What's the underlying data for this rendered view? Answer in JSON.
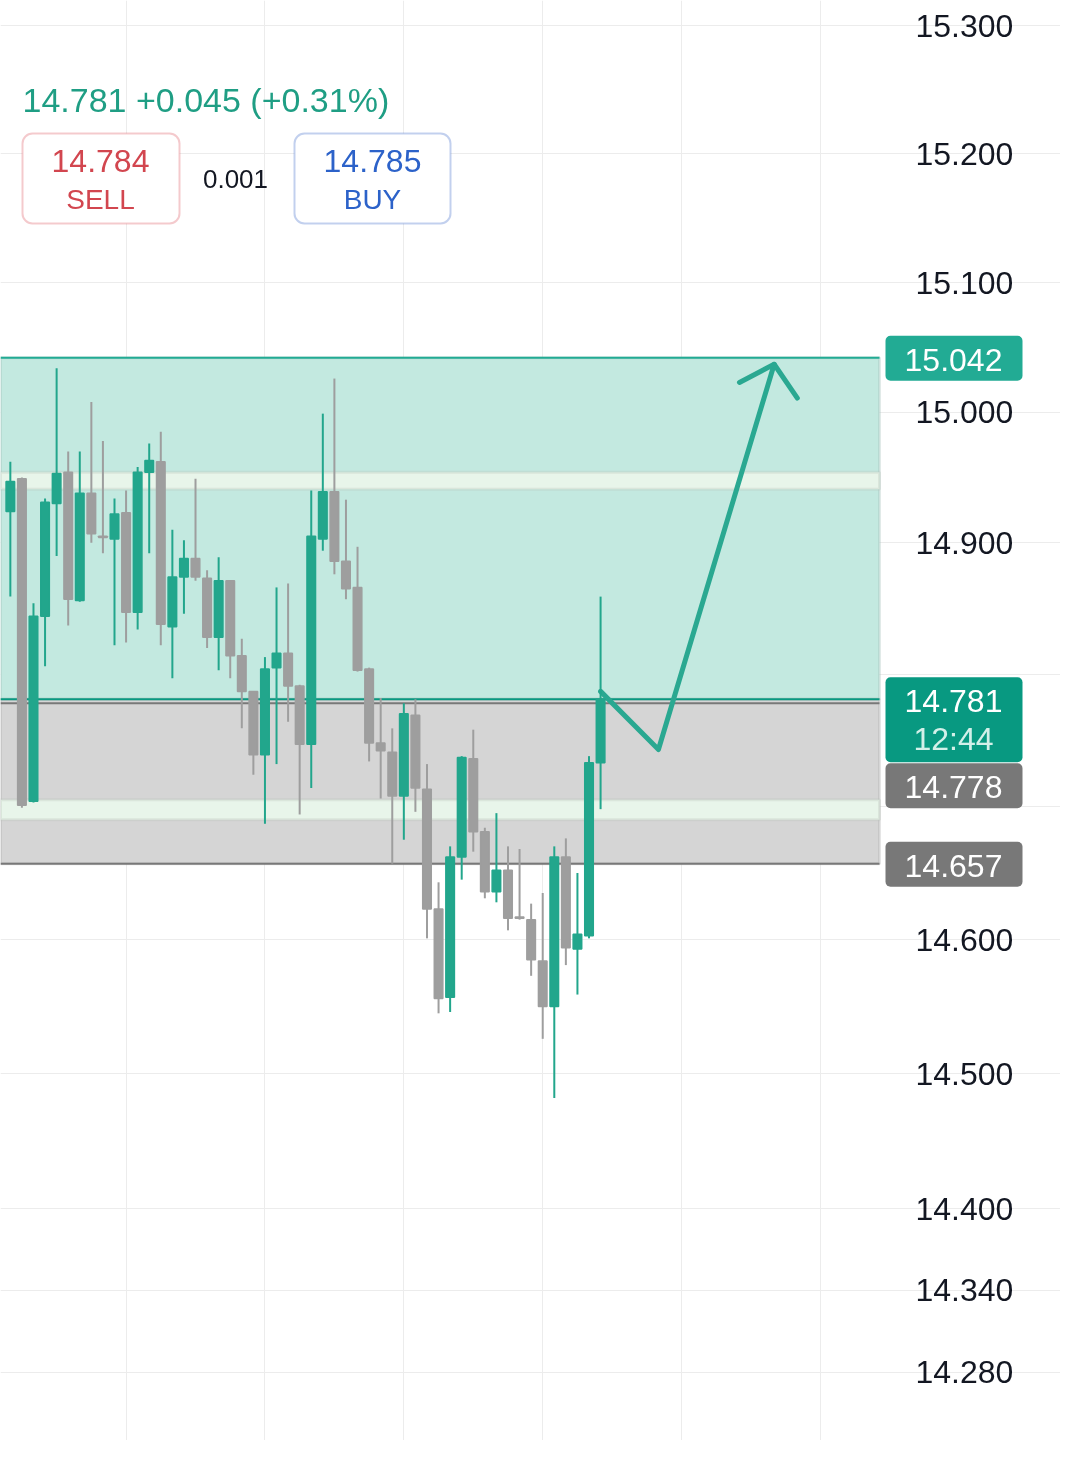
{
  "chart_data": {
    "type": "candlestick",
    "categories": [
      null,
      null,
      null,
      null,
      null,
      null,
      null,
      null,
      null,
      null,
      null,
      null,
      null,
      null,
      null,
      null,
      null,
      null,
      null,
      null,
      null,
      null,
      null,
      null,
      null,
      null,
      null,
      null,
      null,
      null,
      null,
      null,
      null,
      null,
      null,
      null,
      null,
      null,
      null,
      null,
      null,
      null,
      null,
      null,
      null,
      null,
      null,
      null,
      null,
      null,
      null,
      null,
      null,
      null,
      null,
      null,
      null,
      null,
      null,
      null,
      null,
      null,
      null,
      null,
      null,
      null,
      null,
      null,
      null,
      null,
      null,
      null,
      null,
      null,
      null,
      null
    ],
    "ohlc": [
      [
        14.924,
        14.962,
        14.859,
        14.947
      ],
      [
        14.949,
        14.95,
        14.699,
        14.701
      ],
      [
        14.704,
        14.854,
        14.703,
        14.844
      ],
      [
        14.844,
        14.934,
        14.806,
        14.931
      ],
      [
        14.93,
        15.034,
        14.89,
        14.953
      ],
      [
        14.954,
        14.97,
        14.837,
        14.857
      ],
      [
        14.856,
        14.97,
        14.855,
        14.938
      ],
      [
        14.938,
        15.008,
        14.9,
        14.907
      ],
      [
        14.905,
        14.978,
        14.892,
        14.904
      ],
      [
        14.903,
        14.934,
        14.822,
        14.922
      ],
      [
        14.923,
        14.94,
        14.824,
        14.847
      ],
      [
        14.847,
        14.958,
        14.834,
        14.954
      ],
      [
        14.954,
        14.976,
        14.892,
        14.963
      ],
      [
        14.962,
        14.985,
        14.822,
        14.838
      ],
      [
        14.836,
        14.91,
        14.797,
        14.874
      ],
      [
        14.874,
        14.902,
        14.846,
        14.888
      ],
      [
        14.888,
        14.949,
        14.871,
        14.874
      ],
      [
        14.873,
        14.879,
        14.82,
        14.828
      ],
      [
        14.828,
        14.889,
        14.803,
        14.871
      ],
      [
        14.871,
        14.871,
        14.797,
        14.814
      ],
      [
        14.814,
        14.827,
        14.759,
        14.787
      ],
      [
        14.787,
        14.787,
        14.724,
        14.739
      ],
      [
        14.739,
        14.813,
        14.687,
        14.804
      ],
      [
        14.805,
        14.866,
        14.732,
        14.816
      ],
      [
        14.816,
        14.869,
        14.764,
        14.791
      ],
      [
        14.791,
        14.792,
        14.694,
        14.747
      ],
      [
        14.747,
        14.94,
        14.714,
        14.905
      ],
      [
        14.903,
        14.999,
        14.894,
        14.939
      ],
      [
        14.939,
        15.026,
        14.876,
        14.886
      ],
      [
        14.886,
        14.933,
        14.857,
        14.865
      ],
      [
        14.866,
        14.897,
        14.802,
        14.803
      ],
      [
        14.804,
        14.805,
        14.734,
        14.748
      ],
      [
        14.748,
        14.782,
        14.706,
        14.742
      ],
      [
        14.741,
        14.759,
        14.657,
        14.708
      ],
      [
        14.708,
        14.778,
        14.675,
        14.77
      ],
      [
        14.769,
        14.781,
        14.696,
        14.714
      ],
      [
        14.713,
        14.732,
        14.601,
        14.623
      ],
      [
        14.623,
        14.643,
        14.545,
        14.556
      ],
      [
        14.557,
        14.67,
        14.546,
        14.662
      ],
      [
        14.662,
        14.738,
        14.645,
        14.737
      ],
      [
        14.736,
        14.758,
        14.666,
        14.681
      ],
      [
        14.681,
        14.684,
        14.631,
        14.636
      ],
      [
        14.636,
        14.695,
        14.628,
        14.652
      ],
      [
        14.652,
        14.67,
        14.607,
        14.616
      ],
      [
        14.617,
        14.668,
        14.615,
        14.616
      ],
      [
        14.615,
        14.627,
        14.573,
        14.585
      ],
      [
        14.584,
        14.635,
        14.526,
        14.55
      ],
      [
        14.55,
        14.67,
        14.482,
        14.662
      ],
      [
        14.662,
        14.676,
        14.581,
        14.594
      ],
      [
        14.593,
        14.65,
        14.559,
        14.604
      ],
      [
        14.603,
        14.738,
        14.601,
        14.733
      ],
      [
        14.733,
        14.859,
        14.698,
        14.781
      ],
      null,
      null,
      null,
      null,
      null,
      null,
      null,
      null,
      null,
      null,
      null,
      null,
      null,
      null,
      null,
      null,
      null,
      null,
      null,
      null,
      null,
      null,
      null,
      null
    ],
    "colors": [
      "#22a68c",
      "#9e9e9e",
      "#22a68c",
      "#22a68c",
      "#22a68c",
      "#9e9e9e",
      "#22a68c",
      "#9e9e9e",
      "#9e9e9e",
      "#22a68c",
      "#9e9e9e",
      "#22a68c",
      "#22a68c",
      "#9e9e9e",
      "#22a68c",
      "#22a68c",
      "#9e9e9e",
      "#9e9e9e",
      "#22a68c",
      "#9e9e9e",
      "#9e9e9e",
      "#9e9e9e",
      "#22a68c",
      "#22a68c",
      "#9e9e9e",
      "#9e9e9e",
      "#22a68c",
      "#22a68c",
      "#9e9e9e",
      "#9e9e9e",
      "#9e9e9e",
      "#9e9e9e",
      "#9e9e9e",
      "#9e9e9e",
      "#22a68c",
      "#9e9e9e",
      "#9e9e9e",
      "#9e9e9e",
      "#22a68c",
      "#22a68c",
      "#9e9e9e",
      "#9e9e9e",
      "#22a68c",
      "#9e9e9e",
      "#9e9e9e",
      "#9e9e9e",
      "#9e9e9e",
      "#22a68c",
      "#9e9e9e",
      "#22a68c",
      "#22a68c",
      "#22a68c",
      null,
      null,
      null,
      null,
      null,
      null,
      null,
      null,
      null,
      null,
      null,
      null,
      null,
      null,
      null,
      null,
      null,
      null,
      null,
      null,
      null,
      null,
      null,
      null
    ],
    "series": [
      {
        "type": "line",
        "color": "#2aa891",
        "values": [
          null,
          null,
          null,
          null,
          null,
          null,
          null,
          null,
          null,
          null,
          null,
          null,
          null,
          null,
          null,
          null,
          null,
          null,
          null,
          null,
          null,
          null,
          null,
          null,
          null,
          null,
          null,
          null,
          null,
          null,
          null,
          null,
          null,
          null,
          null,
          null,
          null,
          null,
          null,
          null,
          null,
          null,
          null,
          null,
          null,
          null,
          null,
          null,
          null,
          null,
          null,
          14.787,
          null,
          null,
          null,
          null,
          14.743,
          null,
          null,
          null,
          null,
          null,
          null,
          null,
          null,
          null,
          15.037,
          null,
          null,
          null,
          null,
          null,
          null,
          null,
          null,
          null
        ]
      },
      {
        "type": "line",
        "color": "#2aa891",
        "values": [
          null,
          null,
          null,
          null,
          null,
          null,
          null,
          null,
          null,
          null,
          null,
          null,
          null,
          null,
          null,
          null,
          null,
          null,
          null,
          null,
          null,
          null,
          null,
          null,
          null,
          null,
          null,
          null,
          null,
          null,
          null,
          null,
          null,
          null,
          null,
          null,
          null,
          null,
          null,
          null,
          null,
          null,
          null,
          null,
          null,
          null,
          null,
          null,
          null,
          null,
          null,
          null,
          null,
          null,
          null,
          null,
          null,
          null,
          null,
          null,
          null,
          null,
          null,
          15.023,
          null,
          null,
          15.037,
          null,
          15.011,
          null,
          null,
          null,
          null,
          null,
          null,
          null
        ]
      }
    ],
    "bands": [
      {
        "axis": "y",
        "from": 14.781,
        "to": 15.042,
        "color": "#c3e9e0"
      },
      {
        "axis": "y",
        "from": 14.657,
        "to": 14.781,
        "color": "#d5d5d5"
      },
      {
        "axis": "y",
        "from": 14.941,
        "to": 14.954,
        "color": "#e8f5ea"
      },
      {
        "axis": "y",
        "from": 14.69,
        "to": 14.705,
        "color": "#e8f5ea"
      }
    ],
    "ref_lines": [
      {
        "axis": "y",
        "value": 15.042,
        "label": "15.042",
        "color": "#22ab94"
      },
      {
        "axis": "y",
        "value": 14.781,
        "label": "14.781",
        "color": "#089981"
      },
      {
        "axis": "y",
        "value": 14.778,
        "label": "14.778",
        "color": "#787878"
      },
      {
        "axis": "y",
        "value": 14.657,
        "label": "14.657",
        "color": "#787878"
      }
    ],
    "log": true,
    "ylim": [
      14.23,
      15.32
    ],
    "yticks": [
      {
        "value": 15.3,
        "label": "15.300"
      },
      {
        "value": 15.2,
        "label": "15.200"
      },
      {
        "value": 15.1,
        "label": "15.100"
      },
      {
        "value": 15.0,
        "label": "15.000"
      },
      {
        "value": 14.9,
        "label": "14.900"
      },
      {
        "value": 14.8,
        "label": null
      },
      {
        "value": 14.7,
        "label": null
      },
      {
        "value": 14.6,
        "label": "14.600"
      },
      {
        "value": 14.5,
        "label": "14.500"
      },
      {
        "value": 14.4,
        "label": "14.400"
      },
      {
        "value": 14.34,
        "label": "14.340"
      },
      {
        "value": 14.28,
        "label": "14.280"
      }
    ],
    "grid": true,
    "tick_labels": "y",
    "annotations": [
      "14.781 +0.045 (+0.31%)",
      "14.784",
      "SELL",
      "0.001",
      "14.785",
      "BUY",
      "12:44"
    ]
  }
}
